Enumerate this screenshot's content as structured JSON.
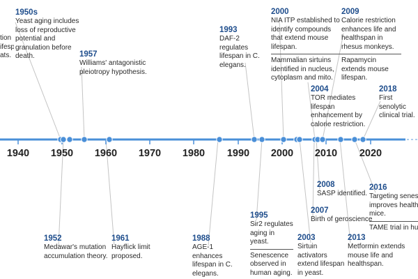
{
  "timeline": {
    "accent": "#4a8fd8",
    "decades": [
      "1940",
      "1950",
      "1960",
      "1970",
      "1980",
      "1990",
      "2000",
      "2010",
      "2020"
    ]
  },
  "events": [
    {
      "year": "1950s",
      "text": "Yeast aging includes loss of reproductive potential and granulation before death."
    },
    {
      "year": "",
      "text": "tion ifespan ats."
    },
    {
      "year": "1957",
      "text": "Williams' antagonistic pleiotropy hypothesis."
    },
    {
      "year": "1993",
      "text": "DAF-2 regulates lifespan in C. elegans."
    },
    {
      "year": "2000",
      "text": "NIA ITP established to identify compounds that extend mouse lifespan.",
      "text2": "Mammalian sirtuins identified in nucleus, cytoplasm and mito."
    },
    {
      "year": "2009",
      "text": "Calorie restriction enhances life and healthspan in rhesus monkeys.",
      "text2": "Rapamycin extends mouse lifespan."
    },
    {
      "year": "2004",
      "text": "TOR mediates lifespan enhancement by calorie restriction."
    },
    {
      "year": "2018",
      "text": "First senolytic clinical trial."
    },
    {
      "year": "1952",
      "text": "Medawar's mutation accumulation theory."
    },
    {
      "year": "1961",
      "text": "Hayflick limit proposed."
    },
    {
      "year": "1988",
      "text": "AGE-1 enhances lifespan in C. elegans."
    },
    {
      "year": "1995",
      "text": "Sir2 regulates aging in yeast.",
      "text2": "Senescence observed in human aging."
    },
    {
      "year": "2003",
      "text": "Sirtuin activators extend lifespan in yeast."
    },
    {
      "year": "2008",
      "text": "SASP identified."
    },
    {
      "year": "2007",
      "text": "Birth of geroscience"
    },
    {
      "year": "2013",
      "text": "Metformin extends mouse life and healthspan."
    },
    {
      "year": "2016",
      "text": "Targeting senescent cells improves healthspan in mice.",
      "text2": "TAME trial in humans"
    }
  ]
}
